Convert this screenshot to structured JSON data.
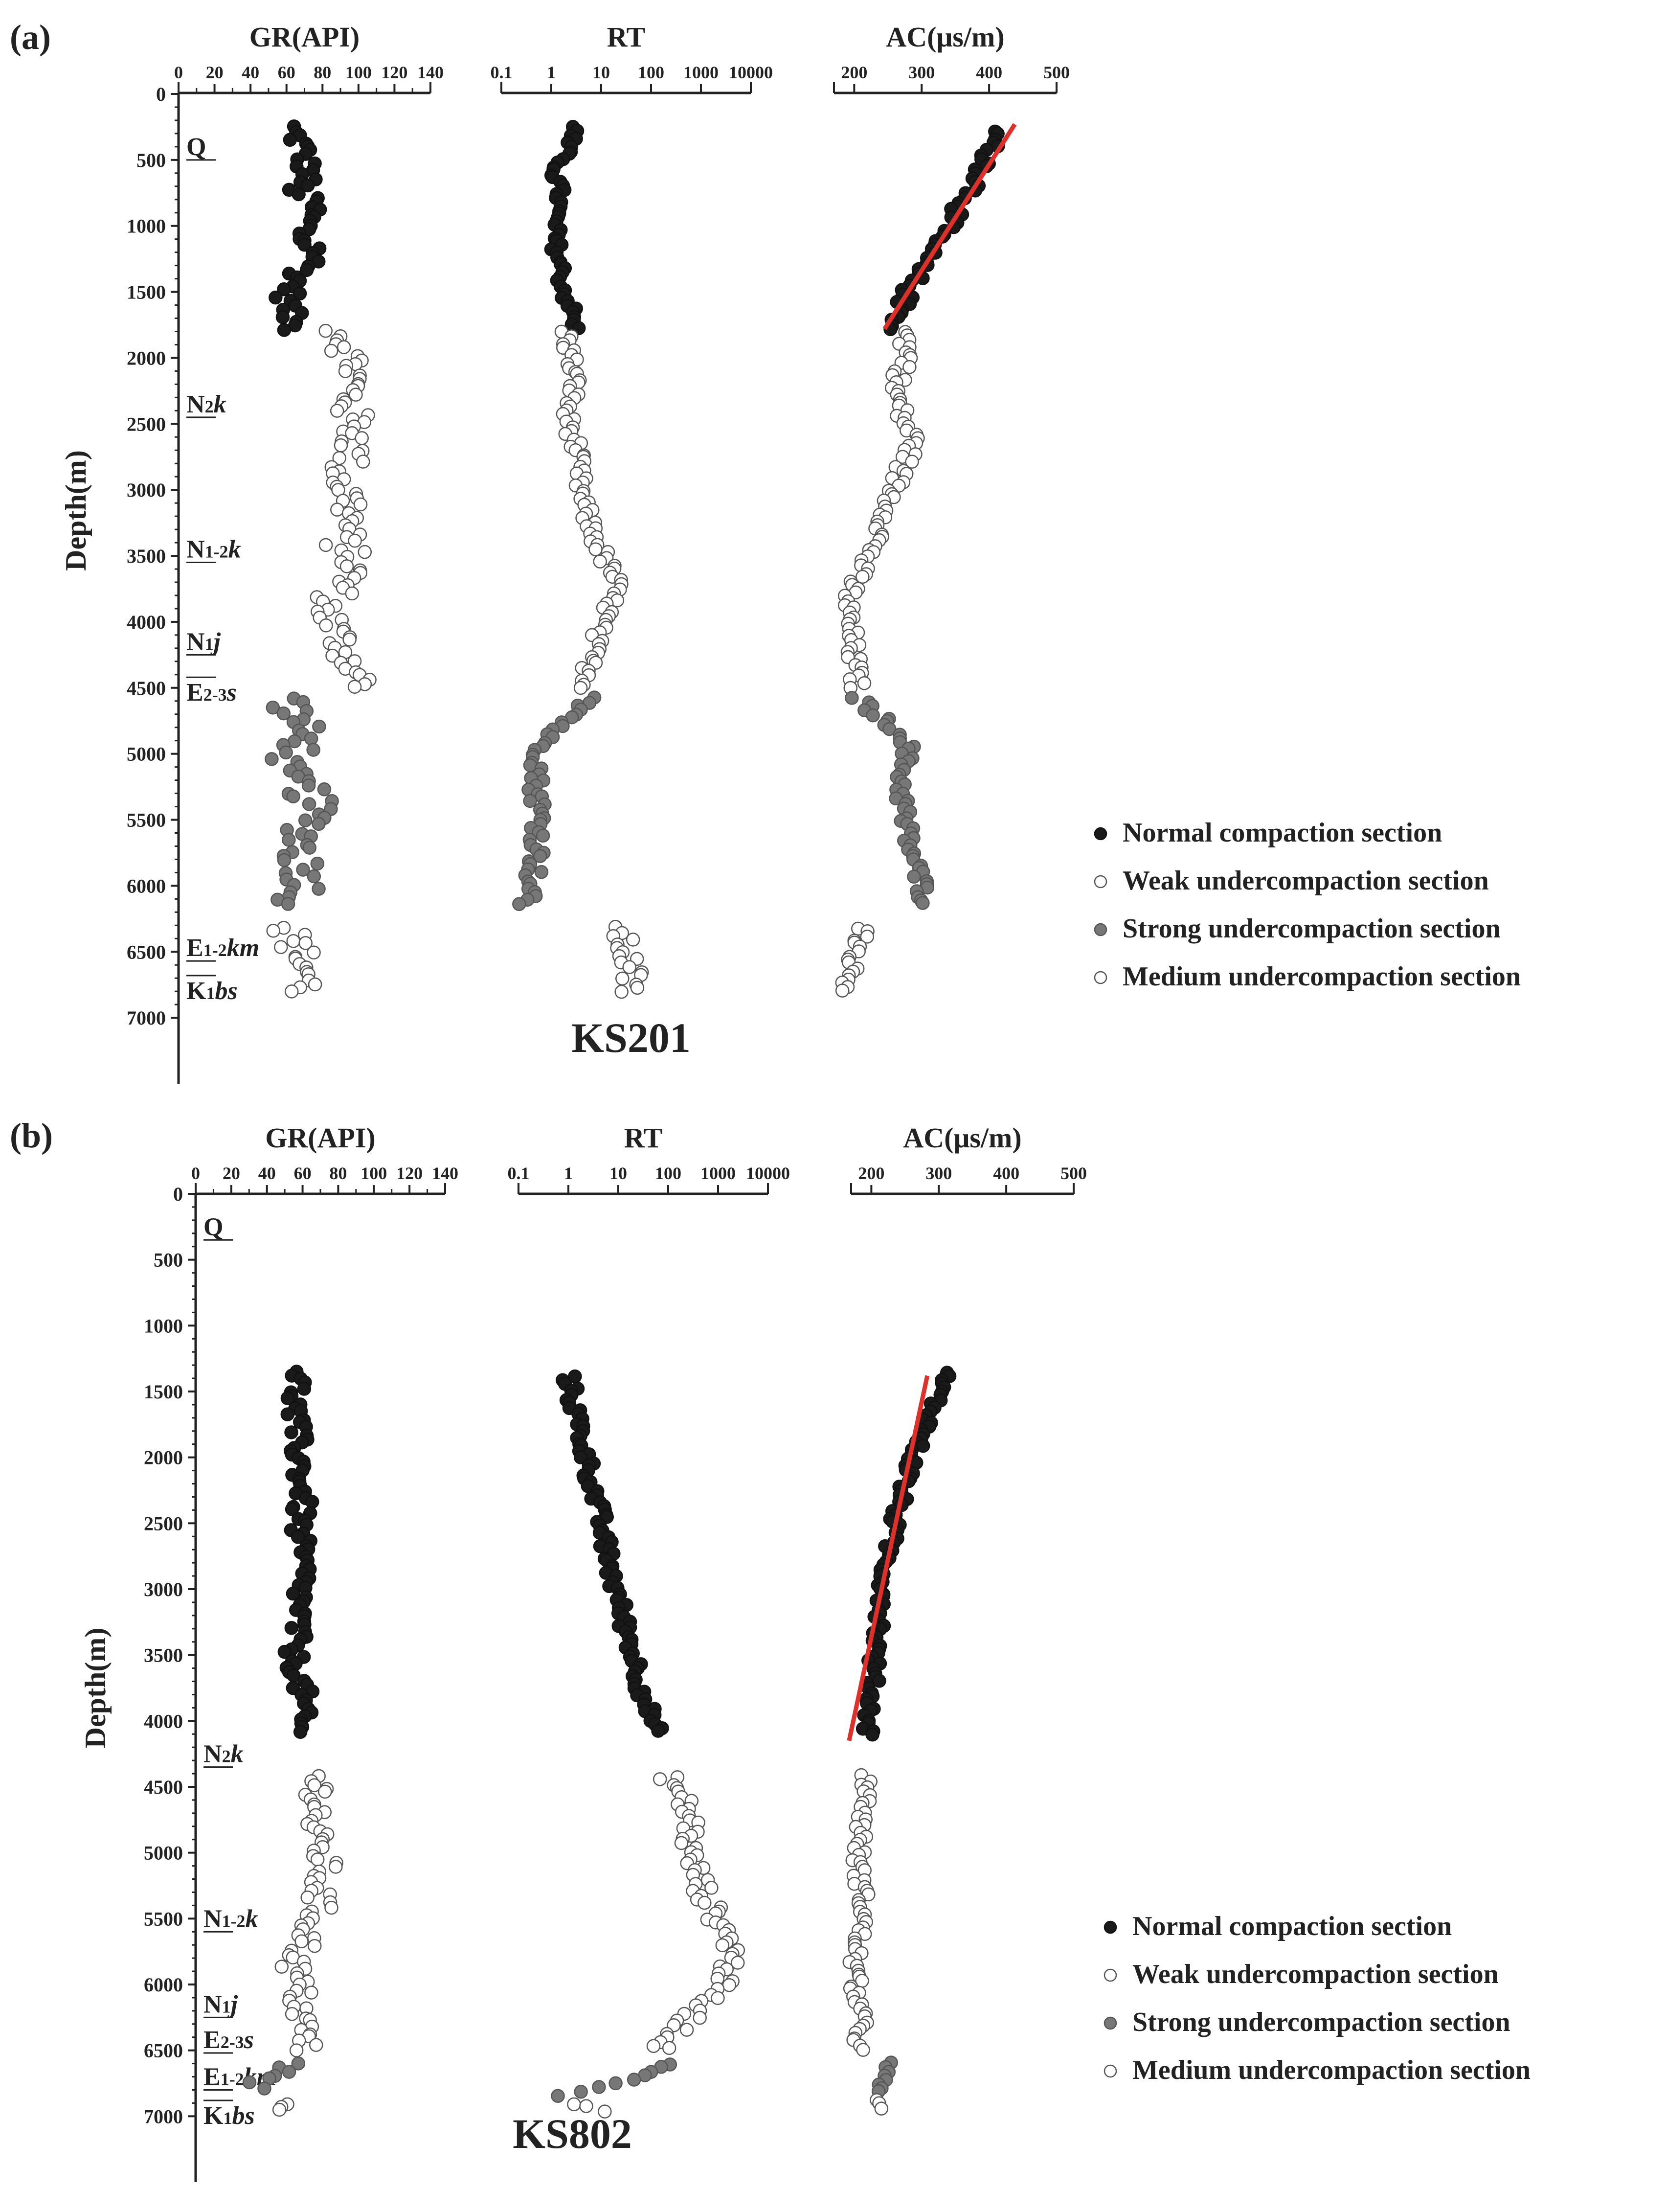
{
  "colors": {
    "normal": "#1a1a1a",
    "weak": "#ffffff",
    "strong": "#777777",
    "medium": "#ffffff",
    "trend": "#e0302a",
    "axis": "#222222"
  },
  "legend_items": [
    "Normal compaction section",
    "Weak undercompaction section",
    "Strong undercompaction section",
    "Medium undercompaction section"
  ],
  "chart_data": [
    {
      "type": "scatter",
      "panel_label": "(a)",
      "well": "KS201",
      "ylabel": "Depth(m)",
      "ylim": [
        0,
        7500
      ],
      "y_ticks": [
        0,
        500,
        1000,
        1500,
        2000,
        2500,
        3000,
        3500,
        4000,
        4500,
        5000,
        5500,
        6000,
        6500,
        7000
      ],
      "formations": [
        {
          "name": "Q",
          "depth": 500,
          "pos": "above"
        },
        {
          "name": "N2k",
          "depth": 2450,
          "pos": "above"
        },
        {
          "name": "N1-2k",
          "depth": 3550,
          "pos": "above"
        },
        {
          "name": "N1j",
          "depth": 4250,
          "pos": "above"
        },
        {
          "name": "E2-3s",
          "depth": 4420,
          "pos": "below"
        },
        {
          "name": "E1-2km",
          "depth": 6570,
          "pos": "above"
        },
        {
          "name": "K1bs",
          "depth": 6680,
          "pos": "below"
        }
      ],
      "tracks": [
        {
          "name": "GR(API)",
          "scale": "linear",
          "xlim": [
            0,
            140
          ],
          "ticks": [
            "0",
            "20",
            "40",
            "60",
            "80",
            "100",
            "120",
            "140"
          ],
          "segments": [
            {
              "class": "normal",
              "d0": 250,
              "d1": 1800,
              "x": [
                62,
                68,
                70,
                72,
                66,
                75,
                72,
                68,
                78,
                70,
                64,
                60,
                62,
                65
              ],
              "j": 7
            },
            {
              "class": "weak",
              "d0": 1800,
              "d1": 4520,
              "x": [
                90,
                95,
                98,
                95,
                96,
                100,
                95,
                90,
                96,
                95,
                90,
                98,
                92,
                82,
                86,
                92,
                98,
                102
              ],
              "j": 10
            },
            {
              "class": "strong",
              "d0": 4580,
              "d1": 6150,
              "x": [
                62,
                66,
                70,
                55,
                72,
                75,
                70,
                68,
                72,
                65
              ],
              "j": 12
            },
            {
              "class": "medium",
              "d0": 6320,
              "d1": 6800,
              "x": [
                60,
                66,
                72,
                70
              ],
              "j": 10
            }
          ]
        },
        {
          "name": "RT",
          "scale": "log",
          "xlim": [
            0.1,
            10000
          ],
          "ticks": [
            "0.1",
            "1",
            "10",
            "100",
            "1000",
            "10000"
          ],
          "segments": [
            {
              "class": "normal",
              "d0": 250,
              "d1": 1800,
              "x": [
                3,
                2,
                1.2,
                1.5,
                1.2,
                1.2,
                1.5,
                1.7,
                2.5,
                3
              ],
              "j": 0.12
            },
            {
              "class": "weak",
              "d0": 1800,
              "d1": 4520,
              "x": [
                2,
                2.5,
                3,
                2,
                3,
                3.5,
                4,
                6,
                10,
                20,
                15,
                8,
                6,
                5
              ],
              "j": 0.15
            },
            {
              "class": "strong",
              "d0": 4580,
              "d1": 6150,
              "x": [
                8,
                0.7,
                0.5,
                0.6,
                0.5,
                0.3
              ],
              "j": 0.18
            },
            {
              "class": "medium",
              "d0": 6320,
              "d1": 6800,
              "x": [
                20,
                30,
                40,
                35
              ],
              "j": 0.25
            }
          ]
        },
        {
          "name": "AC(μs/m)",
          "scale": "linear",
          "xlim": [
            170,
            500
          ],
          "ticks": [
            "200",
            "300",
            "400",
            "500"
          ],
          "trend": {
            "x": [
              438,
              245
            ],
            "depth": [
              230,
              1780
            ]
          },
          "segments": [
            {
              "class": "normal",
              "d0": 280,
              "d1": 1800,
              "x": [
                410,
                395,
                370,
                330,
                300,
                275,
                260
              ],
              "j": 12
            },
            {
              "class": "weak",
              "d0": 1800,
              "d1": 4520,
              "x": [
                275,
                280,
                260,
                270,
                290,
                270,
                255,
                245,
                225,
                200,
                190,
                195,
                200,
                205
              ],
              "j": 12
            },
            {
              "class": "strong",
              "d0": 4580,
              "d1": 6150,
              "x": [
                205,
                280,
                270,
                275,
                290,
                310
              ],
              "j": 12
            },
            {
              "class": "medium",
              "d0": 6320,
              "d1": 6800,
              "x": [
                215,
                205,
                195,
                190
              ],
              "j": 10
            }
          ]
        }
      ]
    },
    {
      "type": "scatter",
      "panel_label": "(b)",
      "well": "KS802",
      "ylabel": "Depth(m)",
      "ylim": [
        0,
        7500
      ],
      "y_ticks": [
        0,
        500,
        1000,
        1500,
        2000,
        2500,
        3000,
        3500,
        4000,
        4500,
        5000,
        5500,
        6000,
        6500,
        7000
      ],
      "formations": [
        {
          "name": "Q",
          "depth": 350,
          "pos": "above"
        },
        {
          "name": "N2k",
          "depth": 4350,
          "pos": "above"
        },
        {
          "name": "N1-2k",
          "depth": 5600,
          "pos": "above"
        },
        {
          "name": "N1j",
          "depth": 6250,
          "pos": "above"
        },
        {
          "name": "E2-3s",
          "depth": 6520,
          "pos": "above"
        },
        {
          "name": "E1-2km",
          "depth": 6800,
          "pos": "above"
        },
        {
          "name": "K1bs",
          "depth": 6880,
          "pos": "below"
        }
      ],
      "tracks": [
        {
          "name": "GR(API)",
          "scale": "linear",
          "xlim": [
            0,
            140
          ],
          "ticks": [
            "0",
            "20",
            "40",
            "60",
            "80",
            "100",
            "120",
            "140"
          ],
          "segments": [
            {
              "class": "normal",
              "d0": 1350,
              "d1": 4100,
              "x": [
                58,
                55,
                58,
                60,
                58,
                60,
                58,
                55,
                60,
                58
              ],
              "j": 6
            },
            {
              "class": "weak",
              "d0": 4420,
              "d1": 6500,
              "x": [
                68,
                70,
                65,
                72,
                70,
                68,
                62,
                55,
                58,
                60,
                62
              ],
              "j": 8
            },
            {
              "class": "strong",
              "d0": 6600,
              "d1": 6800,
              "x": [
                55,
                40,
                30
              ],
              "j": 10
            },
            {
              "class": "medium",
              "d0": 6900,
              "d1": 6960,
              "x": [
                50,
                48
              ],
              "j": 3
            }
          ]
        },
        {
          "name": "RT",
          "scale": "log",
          "xlim": [
            0.1,
            10000
          ],
          "ticks": [
            "0.1",
            "1",
            "10",
            "100",
            "1000",
            "10000"
          ],
          "segments": [
            {
              "class": "normal",
              "d0": 1380,
              "d1": 4100,
              "x": [
                1,
                1.5,
                2.5,
                4,
                6,
                10,
                18,
                30,
                60
              ],
              "j": 0.15
            },
            {
              "class": "weak",
              "d0": 4420,
              "d1": 6500,
              "x": [
                100,
                200,
                300,
                250,
                400,
                600,
                1200,
                2000,
                1500,
                600,
                200,
                60
              ],
              "j": 0.22
            },
            {
              "class": "strong",
              "d0": 6600,
              "d1": 6850,
              "x": [
                120,
                20,
                0.5
              ],
              "j": 0.05
            },
            {
              "class": "medium",
              "d0": 6900,
              "d1": 6970,
              "x": [
                1.2,
                7
              ],
              "j": 0.05
            }
          ]
        },
        {
          "name": "AC(μs/m)",
          "scale": "linear",
          "xlim": [
            170,
            500
          ],
          "ticks": [
            "200",
            "300",
            "400",
            "500"
          ],
          "trend": {
            "x": [
              283,
              167
            ],
            "depth": [
              1380,
              4150
            ]
          },
          "segments": [
            {
              "class": "normal",
              "d0": 1350,
              "d1": 4120,
              "x": [
                310,
                290,
                265,
                245,
                230,
                220,
                215,
                205,
                200,
                195
              ],
              "j": 10
            },
            {
              "class": "weak",
              "d0": 4420,
              "d1": 6500,
              "x": [
                195,
                190,
                185,
                180,
                185,
                190,
                180,
                175,
                178,
                185,
                180
              ],
              "j": 10
            },
            {
              "class": "strong",
              "d0": 6600,
              "d1": 6820,
              "x": [
                225,
                215,
                210
              ],
              "j": 8
            },
            {
              "class": "medium",
              "d0": 6880,
              "d1": 6960,
              "x": [
                210,
                212
              ],
              "j": 4
            }
          ]
        }
      ]
    }
  ]
}
